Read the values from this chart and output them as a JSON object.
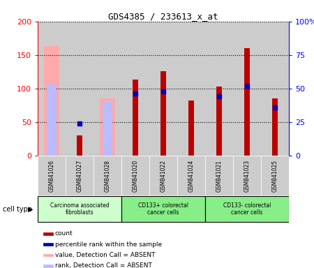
{
  "title": "GDS4385 / 233613_x_at",
  "samples": [
    "GSM841026",
    "GSM841027",
    "GSM841028",
    "GSM841020",
    "GSM841022",
    "GSM841024",
    "GSM841021",
    "GSM841023",
    "GSM841025"
  ],
  "count": [
    null,
    30,
    null,
    113,
    126,
    82,
    103,
    160,
    85
  ],
  "percentile_rank": [
    null,
    24,
    null,
    46,
    48,
    null,
    44,
    52,
    36
  ],
  "value_absent": [
    163,
    null,
    85,
    null,
    null,
    null,
    null,
    null,
    null
  ],
  "rank_absent": [
    53,
    null,
    40,
    null,
    null,
    null,
    null,
    null,
    null
  ],
  "ylim_left": [
    0,
    200
  ],
  "ylim_right": [
    0,
    100
  ],
  "yticks_left": [
    0,
    50,
    100,
    150,
    200
  ],
  "yticks_right": [
    0,
    25,
    50,
    75,
    100
  ],
  "ytick_labels_right": [
    "0",
    "25",
    "50",
    "75",
    "100%"
  ],
  "count_color": "#bb0000",
  "rank_color": "#0000bb",
  "absent_value_color": "#ffaaaa",
  "absent_rank_color": "#bbbbff",
  "bg_color": "#cccccc",
  "legend_items": [
    {
      "color": "#bb0000",
      "label": "count"
    },
    {
      "color": "#0000bb",
      "label": "percentile rank within the sample"
    },
    {
      "color": "#ffaaaa",
      "label": "value, Detection Call = ABSENT"
    },
    {
      "color": "#bbbbff",
      "label": "rank, Detection Call = ABSENT"
    }
  ],
  "group_defs": [
    {
      "indices": [
        0,
        1,
        2
      ],
      "label": "Carcinoma associated\nfibroblasts",
      "color": "#ccffcc"
    },
    {
      "indices": [
        3,
        4,
        5
      ],
      "label": "CD133+ colorectal\ncancer cells",
      "color": "#88ee88"
    },
    {
      "indices": [
        6,
        7,
        8
      ],
      "label": "CD133- colorectal\ncancer cells",
      "color": "#88ee88"
    }
  ]
}
